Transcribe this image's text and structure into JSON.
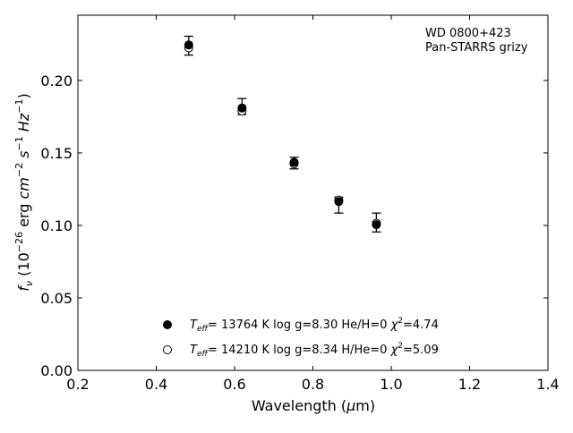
{
  "chart_data": {
    "type": "scatter",
    "xlabel_prefix": "Wavelength (",
    "xlabel_mu": "μ",
    "xlabel_suffix": "m)",
    "ylabel_prefix": "f",
    "ylabel_sub": "ν",
    "ylabel_mid": " (10",
    "ylabel_exp": "−26",
    "ylabel_unit": " erg ",
    "ylabel_cm": "cm",
    "ylabel_cm_exp": "−2",
    "ylabel_s": " s",
    "ylabel_s_exp": "−1",
    "ylabel_hz": " Hz",
    "ylabel_hz_exp": "−1",
    "ylabel_close": ")",
    "xlim": [
      0.2,
      1.4
    ],
    "ylim": [
      0.0,
      0.245
    ],
    "xticks": [
      "0.2",
      "0.4",
      "0.6",
      "0.8",
      "1.0",
      "1.2",
      "1.4"
    ],
    "yticks": [
      "0.00",
      "0.05",
      "0.10",
      "0.15",
      "0.20"
    ],
    "annotation_lines": [
      "WD 0800+423",
      "Pan-STARRS grizy"
    ],
    "observed": {
      "x": [
        0.483,
        0.619,
        0.752,
        0.866,
        0.962
      ],
      "y": [
        0.224,
        0.182,
        0.143,
        0.114,
        0.102
      ],
      "yerr": [
        0.0065,
        0.0055,
        0.004,
        0.0055,
        0.0065
      ]
    },
    "series": [
      {
        "marker": "filled",
        "label_T": "T",
        "label_T_sub": "eff",
        "label_params": "= 13764 K  log g=8.30  He/H=0  ",
        "label_chi": "χ",
        "label_chi_exp": "2",
        "label_chi_val": "=4.74",
        "x": [
          0.483,
          0.619,
          0.752,
          0.866,
          0.962
        ],
        "y": [
          0.2245,
          0.181,
          0.1435,
          0.1165,
          0.1005
        ]
      },
      {
        "marker": "open",
        "label_T": "T",
        "label_T_sub": "eff",
        "label_params": "= 14210 K  log g=8.34  H/He=0  ",
        "label_chi": "χ",
        "label_chi_exp": "2",
        "label_chi_val": "=5.09",
        "x": [
          0.483,
          0.619,
          0.752,
          0.866,
          0.962
        ],
        "y": [
          0.2225,
          0.179,
          0.1425,
          0.1175,
          0.1015
        ]
      }
    ],
    "colors": {
      "marker": "#000000",
      "background": "#ffffff"
    }
  }
}
